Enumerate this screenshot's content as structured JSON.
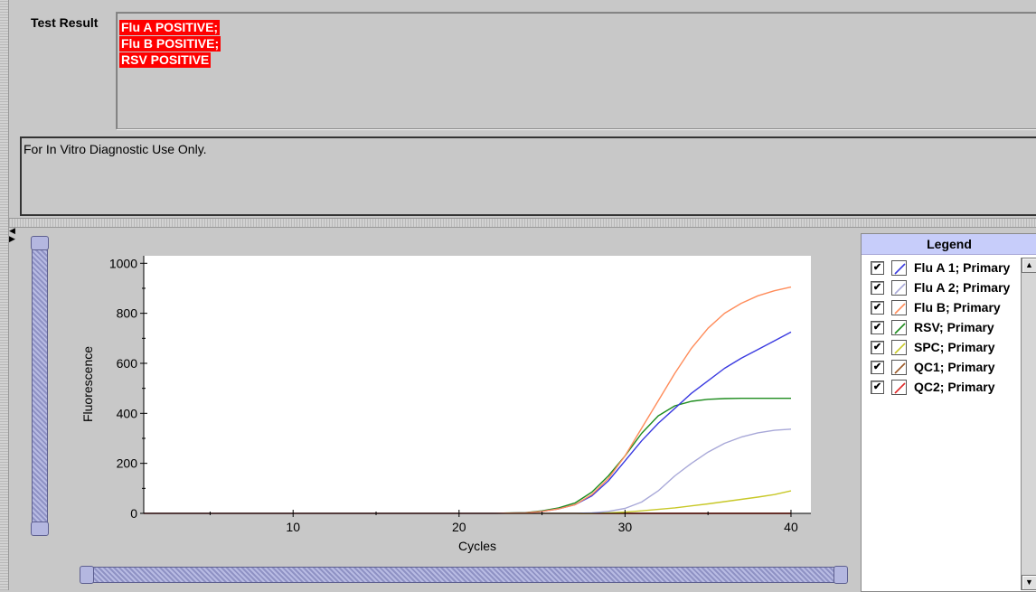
{
  "result_panel": {
    "label": "Test Result",
    "lines": [
      "Flu A POSITIVE;",
      "Flu B POSITIVE;",
      "RSV POSITIVE"
    ]
  },
  "note": "For In Vitro Diagnostic Use Only.",
  "legend": {
    "title": "Legend",
    "items": [
      {
        "label": "Flu A 1; Primary",
        "color": "#3a3ae0",
        "checked": true
      },
      {
        "label": "Flu A 2; Primary",
        "color": "#a8a8d8",
        "checked": true
      },
      {
        "label": "Flu B; Primary",
        "color": "#ff8c5a",
        "checked": true
      },
      {
        "label": "RSV; Primary",
        "color": "#1e8c1e",
        "checked": true
      },
      {
        "label": "SPC; Primary",
        "color": "#c8c828",
        "checked": true
      },
      {
        "label": "QC1; Primary",
        "color": "#9c5a28",
        "checked": true
      },
      {
        "label": "QC2; Primary",
        "color": "#e02828",
        "checked": true
      }
    ]
  },
  "chart_data": {
    "type": "line",
    "xlabel": "Cycles",
    "ylabel": "Fluorescence",
    "xlim": [
      1,
      41.2
    ],
    "ylim": [
      0,
      1030
    ],
    "xticks": [
      10,
      20,
      30,
      40
    ],
    "yticks": [
      0,
      200,
      400,
      600,
      800,
      1000
    ],
    "x": [
      1,
      5,
      10,
      15,
      20,
      22,
      24,
      25,
      26,
      27,
      28,
      29,
      30,
      31,
      32,
      33,
      34,
      35,
      36,
      37,
      38,
      39,
      40
    ],
    "series": [
      {
        "name": "Flu A 1; Primary",
        "color": "#3a3ae0",
        "values": [
          0,
          0,
          0,
          0,
          0,
          0,
          2,
          8,
          18,
          35,
          70,
          130,
          210,
          290,
          360,
          420,
          480,
          530,
          580,
          620,
          655,
          690,
          725
        ]
      },
      {
        "name": "Flu A 2; Primary",
        "color": "#a8a8d8",
        "values": [
          0,
          0,
          0,
          0,
          0,
          0,
          0,
          0,
          0,
          0,
          2,
          8,
          20,
          45,
          90,
          150,
          200,
          245,
          280,
          305,
          322,
          332,
          337
        ]
      },
      {
        "name": "Flu B; Primary",
        "color": "#ff8c5a",
        "values": [
          0,
          0,
          0,
          0,
          0,
          0,
          2,
          8,
          18,
          35,
          75,
          140,
          230,
          340,
          450,
          560,
          660,
          740,
          800,
          840,
          870,
          890,
          905
        ]
      },
      {
        "name": "RSV; Primary",
        "color": "#1e8c1e",
        "values": [
          0,
          0,
          0,
          0,
          0,
          0,
          3,
          10,
          22,
          42,
          85,
          150,
          230,
          320,
          390,
          430,
          448,
          456,
          459,
          460,
          460,
          460,
          460
        ]
      },
      {
        "name": "SPC; Primary",
        "color": "#c8c828",
        "values": [
          0,
          0,
          0,
          0,
          0,
          0,
          0,
          0,
          0,
          0,
          0,
          2,
          5,
          10,
          16,
          22,
          30,
          38,
          47,
          56,
          65,
          75,
          90
        ]
      },
      {
        "name": "QC1; Primary",
        "color": "#9c5a28",
        "values": [
          0,
          0,
          0,
          0,
          0,
          0,
          0,
          0,
          0,
          0,
          0,
          0,
          0,
          0,
          0,
          0,
          0,
          0,
          0,
          0,
          0,
          0,
          0
        ]
      },
      {
        "name": "QC2; Primary",
        "color": "#e02828",
        "values": [
          0,
          0,
          0,
          0,
          0,
          0,
          0,
          0,
          0,
          0,
          0,
          0,
          0,
          0,
          0,
          0,
          0,
          0,
          0,
          0,
          0,
          0,
          0
        ]
      }
    ]
  }
}
